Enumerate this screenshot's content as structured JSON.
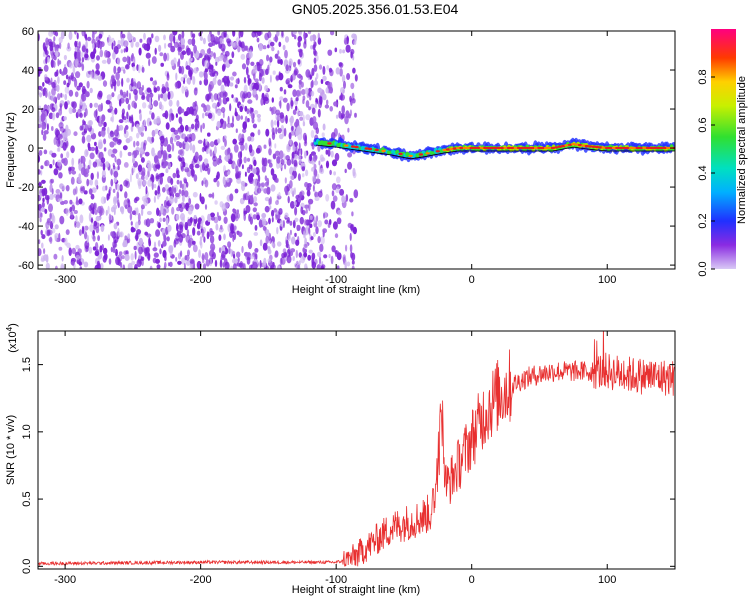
{
  "title": "GN05.2025.356.01.53.E04",
  "chart_data": [
    {
      "type": "heatmap",
      "xlabel": "Height of straight line (km)",
      "ylabel": "Frequency (Hz)",
      "xlim": [
        -320,
        150
      ],
      "ylim": [
        -62,
        60
      ],
      "xticks": [
        -300,
        -200,
        -100,
        0,
        100
      ],
      "yticks": [
        60,
        40,
        20,
        0,
        -20,
        -40,
        -60
      ],
      "noise_region_x": [
        -320,
        -90
      ],
      "signal_track": {
        "x": [
          -115,
          -100,
          -80,
          -60,
          -45,
          -35,
          -20,
          -10,
          0,
          20,
          40,
          60,
          75,
          85,
          100,
          120,
          150
        ],
        "frequency": [
          3,
          2,
          0,
          -2,
          -4,
          -3,
          -1,
          0,
          0,
          0,
          0,
          0,
          2,
          1,
          0,
          0,
          0
        ]
      },
      "colorbar": {
        "label": "Normalized spectral amplitude",
        "range": [
          0.0,
          1.0
        ],
        "ticks": [
          0.0,
          0.2,
          0.4,
          0.6,
          0.8
        ],
        "tick_labels": [
          "0.0",
          "0.2",
          "0.4",
          "0.6",
          "0.8"
        ]
      }
    },
    {
      "type": "line",
      "xlabel": "Height of straight line (km)",
      "ylabel": "SNR (10 * v/v)",
      "scale_label": "(x10",
      "scale_exp": "4",
      "scale_close": ")",
      "xlim": [
        -320,
        150
      ],
      "ylim": [
        -0.02,
        1.75
      ],
      "xticks": [
        -300,
        -200,
        -100,
        0,
        100
      ],
      "yticks": [
        0.0,
        0.5,
        1.0,
        1.5
      ],
      "ytick_labels": [
        "0.0",
        "0.5",
        "1.0",
        "1.5"
      ],
      "series": [
        {
          "name": "SNR",
          "color": "#e83030",
          "x": [
            -320,
            -200,
            -120,
            -100,
            -90,
            -80,
            -70,
            -60,
            -50,
            -40,
            -30,
            -25,
            -22,
            -20,
            -15,
            -10,
            0,
            10,
            20,
            30,
            40,
            50,
            60,
            80,
            100,
            120,
            150
          ],
          "values": [
            0.02,
            0.03,
            0.03,
            0.03,
            0.05,
            0.12,
            0.2,
            0.28,
            0.32,
            0.35,
            0.4,
            0.7,
            1.2,
            0.6,
            0.65,
            0.75,
            0.95,
            1.15,
            1.28,
            1.35,
            1.4,
            1.43,
            1.45,
            1.45,
            1.45,
            1.42,
            1.4
          ]
        }
      ]
    }
  ]
}
